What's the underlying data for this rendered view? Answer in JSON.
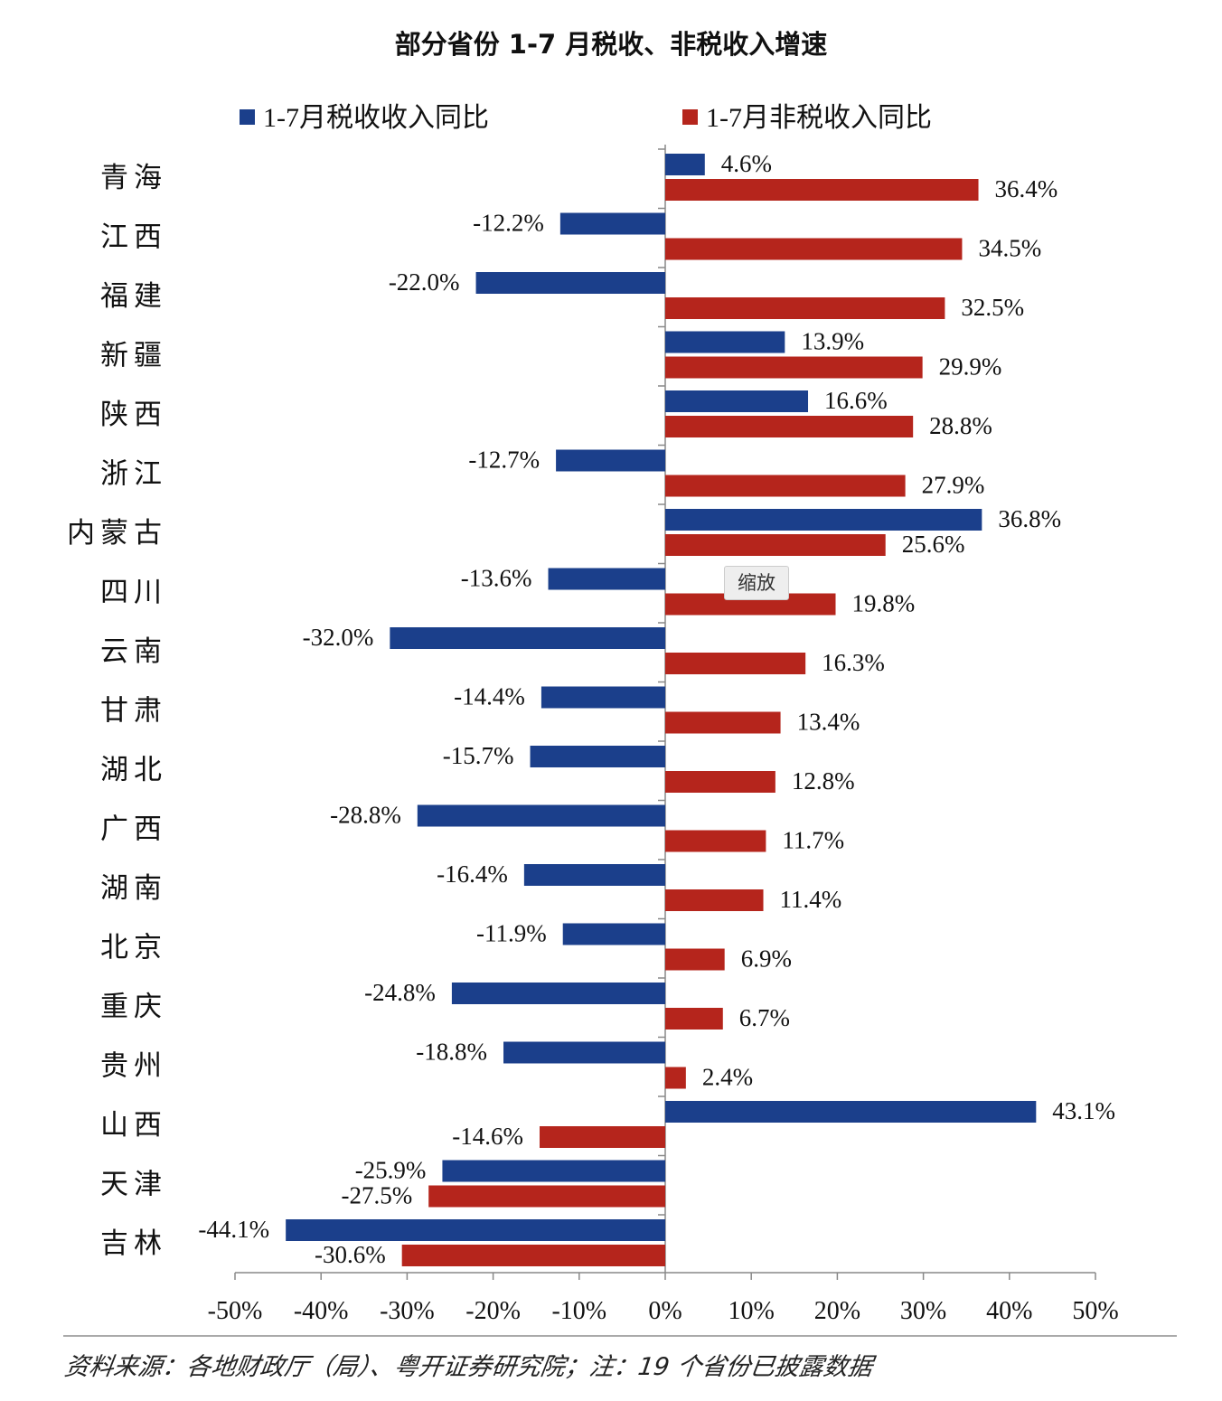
{
  "chart_data": {
    "type": "bar",
    "orientation": "horizontal",
    "title": "部分省份 1-7 月税收、非税收入增速",
    "categories": [
      "青海",
      "江西",
      "福建",
      "新疆",
      "陕西",
      "浙江",
      "内蒙古",
      "四川",
      "云南",
      "甘肃",
      "湖北",
      "广西",
      "湖南",
      "北京",
      "重庆",
      "贵州",
      "山西",
      "天津",
      "吉林"
    ],
    "series": [
      {
        "name": "1-7月税收收入同比",
        "color": "#1b3f8b",
        "values": [
          4.6,
          -12.2,
          -22.0,
          13.9,
          16.6,
          -12.7,
          36.8,
          -13.6,
          -32.0,
          -14.4,
          -15.7,
          -28.8,
          -16.4,
          -11.9,
          -24.8,
          -18.8,
          43.1,
          -25.9,
          -44.1
        ]
      },
      {
        "name": "1-7月非税收入同比",
        "color": "#b5251c",
        "values": [
          36.4,
          34.5,
          32.5,
          29.9,
          28.8,
          27.9,
          25.6,
          19.8,
          16.3,
          13.4,
          12.8,
          11.7,
          11.4,
          6.9,
          6.7,
          2.4,
          -14.6,
          -27.5,
          -30.6
        ]
      }
    ],
    "xlim": [
      -50,
      50
    ],
    "xticks": [
      "-50%",
      "-40%",
      "-30%",
      "-20%",
      "-10%",
      "0%",
      "10%",
      "20%",
      "30%",
      "40%",
      "50%"
    ],
    "legend": "top",
    "grid": false
  },
  "footer": "资料来源：各地财政厅（局）、粤开证券研究院；注：19 个省份已披露数据",
  "tooltip": "缩放"
}
